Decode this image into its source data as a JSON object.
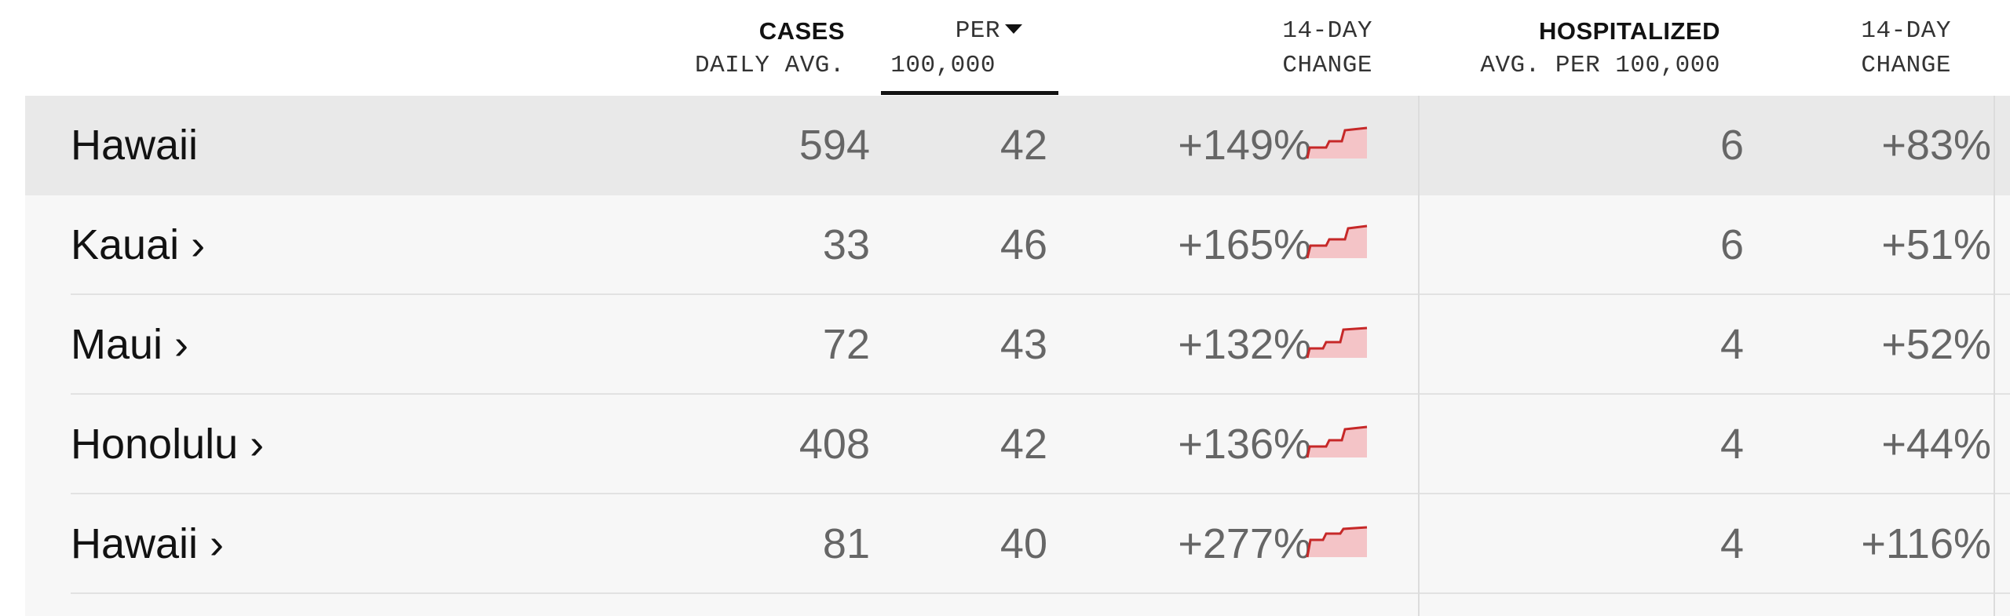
{
  "columns": {
    "cases_title": "CASES",
    "cases_sub": "DAILY AVG.",
    "per_title": "PER",
    "per_sub": "100,000",
    "change1_title": "14-DAY",
    "change1_sub": "CHANGE",
    "hosp_title": "HOSPITALIZED",
    "hosp_sub": "AVG. PER 100,000",
    "change2_title": "14-DAY",
    "change2_sub": "CHANGE"
  },
  "colors": {
    "spark_fill": "#f4c4c7",
    "spark_line": "#c62828"
  },
  "rows": [
    {
      "name": "Hawaii",
      "cases": "594",
      "per100k": "42",
      "change": "+149%",
      "hosp": "6",
      "hosp_change": "+83%"
    },
    {
      "name": "Kauai ›",
      "cases": "33",
      "per100k": "46",
      "change": "+165%",
      "hosp": "6",
      "hosp_change": "+51%"
    },
    {
      "name": "Maui ›",
      "cases": "72",
      "per100k": "43",
      "change": "+132%",
      "hosp": "4",
      "hosp_change": "+52%"
    },
    {
      "name": "Honolulu ›",
      "cases": "408",
      "per100k": "42",
      "change": "+136%",
      "hosp": "4",
      "hosp_change": "+44%"
    },
    {
      "name": "Hawaii ›",
      "cases": "81",
      "per100k": "40",
      "change": "+277%",
      "hosp": "4",
      "hosp_change": "+116%"
    }
  ]
}
